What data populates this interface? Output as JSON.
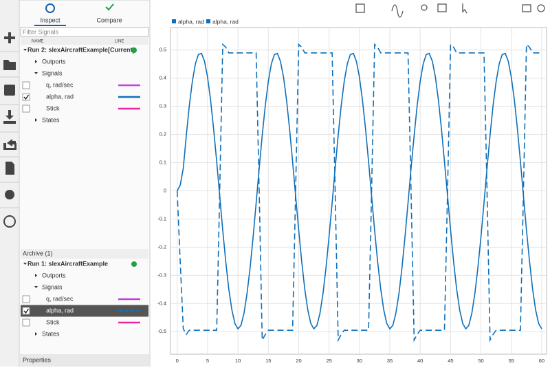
{
  "tabs": [
    "Inspect",
    "Compare"
  ],
  "filter_placeholder": "Filter Signals",
  "columns": [
    "NAME",
    "LINE"
  ],
  "current_run": {
    "name": "Run 2: slexAircraftExample[Current]",
    "rows": [
      {
        "label": "Outports",
        "kind": "group"
      },
      {
        "label": "Signals",
        "kind": "group-open"
      },
      {
        "label": "q, rad/sec",
        "color": "#c13fe0",
        "checked": false
      },
      {
        "label": "alpha, rad",
        "color": "#0f6fb8",
        "checked": true
      },
      {
        "label": "Stick",
        "color": "#e8259e",
        "checked": false
      },
      {
        "label": "States",
        "kind": "group"
      }
    ]
  },
  "archive": {
    "title": "Archive (1)",
    "name": "Run 1: slexAircraftExample",
    "rows": [
      {
        "label": "Outports",
        "kind": "group"
      },
      {
        "label": "Signals",
        "kind": "group-open"
      },
      {
        "label": "q, rad/sec",
        "color": "#c13fe0",
        "checked": false
      },
      {
        "label": "alpha, rad",
        "color": "#0f6fb8",
        "checked": true,
        "selected": true,
        "dashed": true
      },
      {
        "label": "Stick",
        "color": "#e8259e",
        "checked": false
      },
      {
        "label": "States",
        "kind": "group"
      }
    ]
  },
  "properties": "Properties",
  "chart_data": {
    "type": "line",
    "grid": true,
    "x": [
      0,
      0.5,
      1,
      1.5,
      2,
      2.5,
      3,
      3.5,
      4,
      4.5,
      5,
      5.5,
      6,
      6.5,
      7,
      7.5,
      8,
      8.5,
      9,
      9.5,
      10,
      10.5,
      11,
      11.5,
      12,
      12.5,
      13,
      13.5,
      14,
      14.5,
      15,
      15.5,
      16,
      16.5,
      17,
      17.5,
      18,
      18.5,
      19,
      19.5,
      20,
      20.5,
      21,
      21.5,
      22,
      22.5,
      23,
      23.5,
      24,
      24.5,
      25,
      25.5,
      26,
      26.5,
      27,
      27.5,
      28,
      28.5,
      29,
      29.5,
      30,
      30.5,
      31,
      31.5,
      32,
      32.5,
      33,
      33.5,
      34,
      34.5,
      35,
      35.5,
      36,
      36.5,
      37,
      37.5,
      38,
      38.5,
      39,
      39.5,
      40,
      40.5,
      41,
      41.5,
      42,
      42.5,
      43,
      43.5,
      44,
      44.5,
      45,
      45.5,
      46,
      46.5,
      47,
      47.5,
      48,
      48.5,
      49,
      49.5,
      50,
      50.5,
      51,
      51.5,
      52,
      52.5,
      53,
      53.5,
      54,
      54.5,
      55,
      55.5,
      56,
      56.5,
      57,
      57.5,
      58,
      58.5,
      59,
      59.5,
      60
    ],
    "series": [
      {
        "name": "alpha, rad",
        "color": "#0f6fb8",
        "line_style": "solid",
        "values": [
          0,
          0.02,
          0.08,
          0.197,
          0.303,
          0.389,
          0.451,
          0.484,
          0.488,
          0.46,
          0.404,
          0.322,
          0.22,
          0.104,
          -0.018,
          -0.14,
          -0.252,
          -0.349,
          -0.423,
          -0.471,
          -0.49,
          -0.478,
          -0.435,
          -0.365,
          -0.273,
          -0.163,
          -0.043,
          0.08,
          0.197,
          0.303,
          0.389,
          0.451,
          0.484,
          0.488,
          0.46,
          0.404,
          0.322,
          0.22,
          0.104,
          -0.018,
          -0.14,
          -0.252,
          -0.349,
          -0.423,
          -0.471,
          -0.49,
          -0.478,
          -0.435,
          -0.365,
          -0.273,
          -0.163,
          -0.043,
          0.08,
          0.197,
          0.303,
          0.389,
          0.451,
          0.484,
          0.488,
          0.46,
          0.404,
          0.322,
          0.22,
          0.104,
          -0.018,
          -0.14,
          -0.252,
          -0.349,
          -0.423,
          -0.471,
          -0.49,
          -0.478,
          -0.435,
          -0.365,
          -0.273,
          -0.163,
          -0.043,
          0.08,
          0.197,
          0.303,
          0.389,
          0.451,
          0.484,
          0.488,
          0.46,
          0.404,
          0.322,
          0.22,
          0.104,
          -0.018,
          -0.14,
          -0.252,
          -0.349,
          -0.423,
          -0.471,
          -0.49,
          -0.478,
          -0.435,
          -0.365,
          -0.273,
          -0.163,
          -0.043,
          0.08,
          0.197,
          0.303,
          0.389,
          0.451,
          0.484,
          0.488,
          0.46,
          0.404,
          0.322,
          0.22,
          0.104,
          -0.018,
          -0.14,
          -0.252,
          -0.349,
          -0.423,
          -0.471,
          -0.49
        ]
      },
      {
        "name": "alpha, rad",
        "color": "#0f6fb8",
        "line_style": "dashed",
        "values": [
          0,
          -0.25,
          -0.49,
          -0.51,
          -0.495,
          -0.495,
          -0.495,
          -0.495,
          -0.495,
          -0.495,
          -0.495,
          -0.495,
          -0.495,
          -0.495,
          0,
          0.52,
          0.51,
          0.49,
          0.49,
          0.49,
          0.49,
          0.49,
          0.49,
          0.49,
          0.49,
          0.49,
          0.49,
          0,
          -0.53,
          -0.51,
          -0.495,
          -0.495,
          -0.495,
          -0.495,
          -0.495,
          -0.495,
          -0.495,
          -0.495,
          -0.495,
          0,
          0.52,
          0.51,
          0.49,
          0.49,
          0.49,
          0.49,
          0.49,
          0.49,
          0.49,
          0.49,
          0.49,
          0.49,
          0,
          -0.53,
          -0.51,
          -0.495,
          -0.495,
          -0.495,
          -0.495,
          -0.495,
          -0.495,
          -0.495,
          -0.495,
          -0.495,
          0,
          0.52,
          0.51,
          0.49,
          0.49,
          0.49,
          0.49,
          0.49,
          0.49,
          0.49,
          0.49,
          0.49,
          0.49,
          0,
          -0.53,
          -0.51,
          -0.495,
          -0.495,
          -0.495,
          -0.495,
          -0.495,
          -0.495,
          -0.495,
          -0.495,
          -0.495,
          0,
          0.52,
          0.51,
          0.49,
          0.49,
          0.49,
          0.49,
          0.49,
          0.49,
          0.49,
          0.49,
          0.49,
          0.49,
          0,
          -0.53,
          -0.51,
          -0.495,
          -0.495,
          -0.495,
          -0.495,
          -0.495,
          -0.495,
          -0.495,
          -0.495,
          -0.495,
          0,
          0.52,
          0.51,
          0.49,
          0.49,
          0.49,
          0.49
        ]
      }
    ],
    "xlim": [
      -1.1,
      60.8
    ],
    "ylim": [
      -0.58,
      0.58
    ],
    "xticks": [
      0,
      5,
      10,
      15,
      20,
      25,
      30,
      35,
      40,
      45,
      50,
      55,
      60
    ],
    "yticks": [
      -0.5,
      -0.4,
      -0.3,
      -0.2,
      -0.1,
      0,
      0.1,
      0.2,
      0.3,
      0.4,
      0.5
    ]
  }
}
